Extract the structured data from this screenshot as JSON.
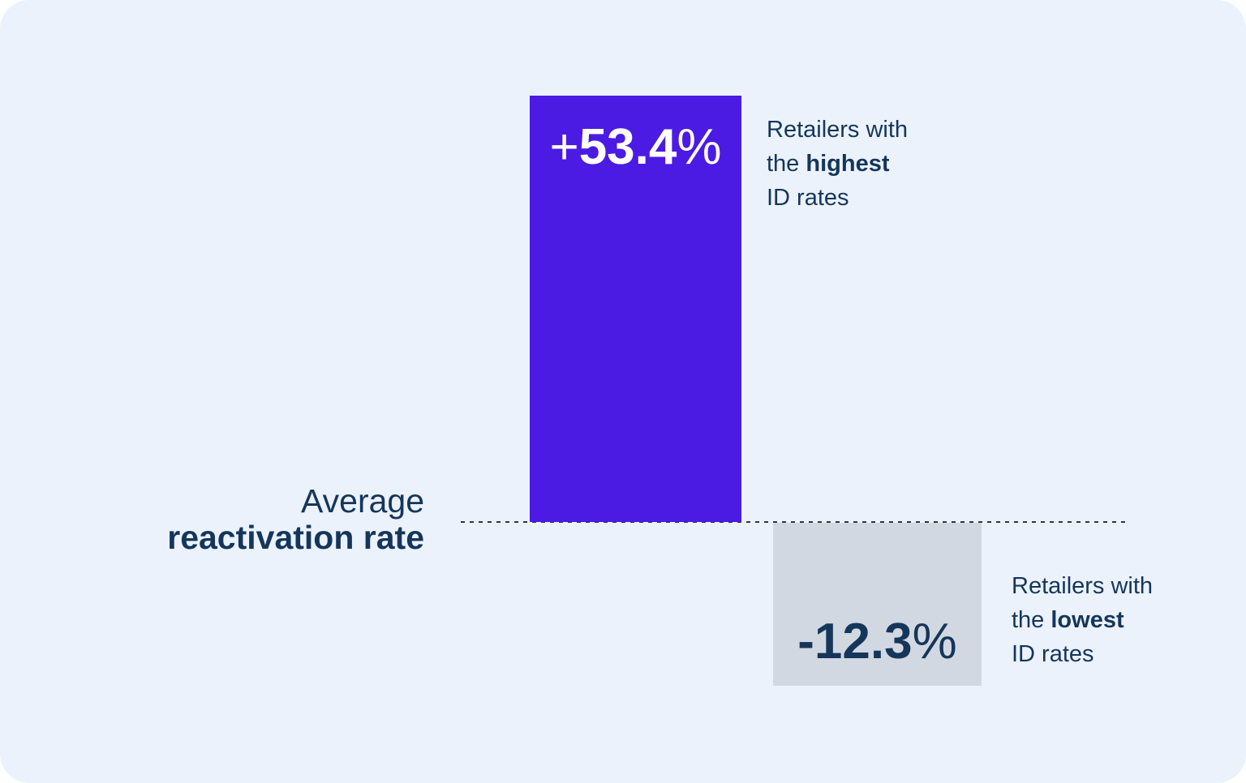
{
  "page": {
    "background_color": "#FFFFFF",
    "card_background_color": "#EBF2FC",
    "text_color": "#15365B",
    "baseline_dash_color": "#2B3844"
  },
  "chart": {
    "baseline_label": {
      "line1": "Average",
      "line2_bold": "reactivation rate"
    },
    "bars": {
      "high": {
        "value_prefix": "+",
        "value_number": "53.4",
        "value_suffix": "%",
        "color": "#4B1BE4",
        "value_text_color": "#FFFFFF",
        "label": {
          "line1": "Retailers with",
          "line2_prefix": "the ",
          "line2_bold": "highest",
          "line3": "ID rates"
        }
      },
      "low": {
        "value_prefix": "-",
        "value_number": "12.3",
        "value_suffix": "%",
        "color": "#D2D8E1",
        "value_text_color": "#15365B",
        "label": {
          "line1": "Retailers with",
          "line2_prefix": "the ",
          "line2_bold": "lowest",
          "line3": "ID rates"
        }
      }
    }
  },
  "chart_data": {
    "type": "bar",
    "categories": [
      "Retailers with the highest ID rates",
      "Retailers with the lowest ID rates"
    ],
    "values": [
      53.4,
      -12.3
    ],
    "value_labels": [
      "+53.4%",
      "-12.3%"
    ],
    "title": "",
    "xlabel": "",
    "ylabel": "",
    "baseline": 0,
    "baseline_label": "Average reactivation rate",
    "bar_colors": [
      "#4B1BE4",
      "#D2D8E1"
    ],
    "grid": false,
    "legend_position": "none",
    "annotations": [
      {
        "target": "bar-1",
        "text": "Retailers with the highest ID rates",
        "bold_word": "highest"
      },
      {
        "target": "bar-2",
        "text": "Retailers with the lowest ID rates",
        "bold_word": "lowest"
      }
    ]
  }
}
